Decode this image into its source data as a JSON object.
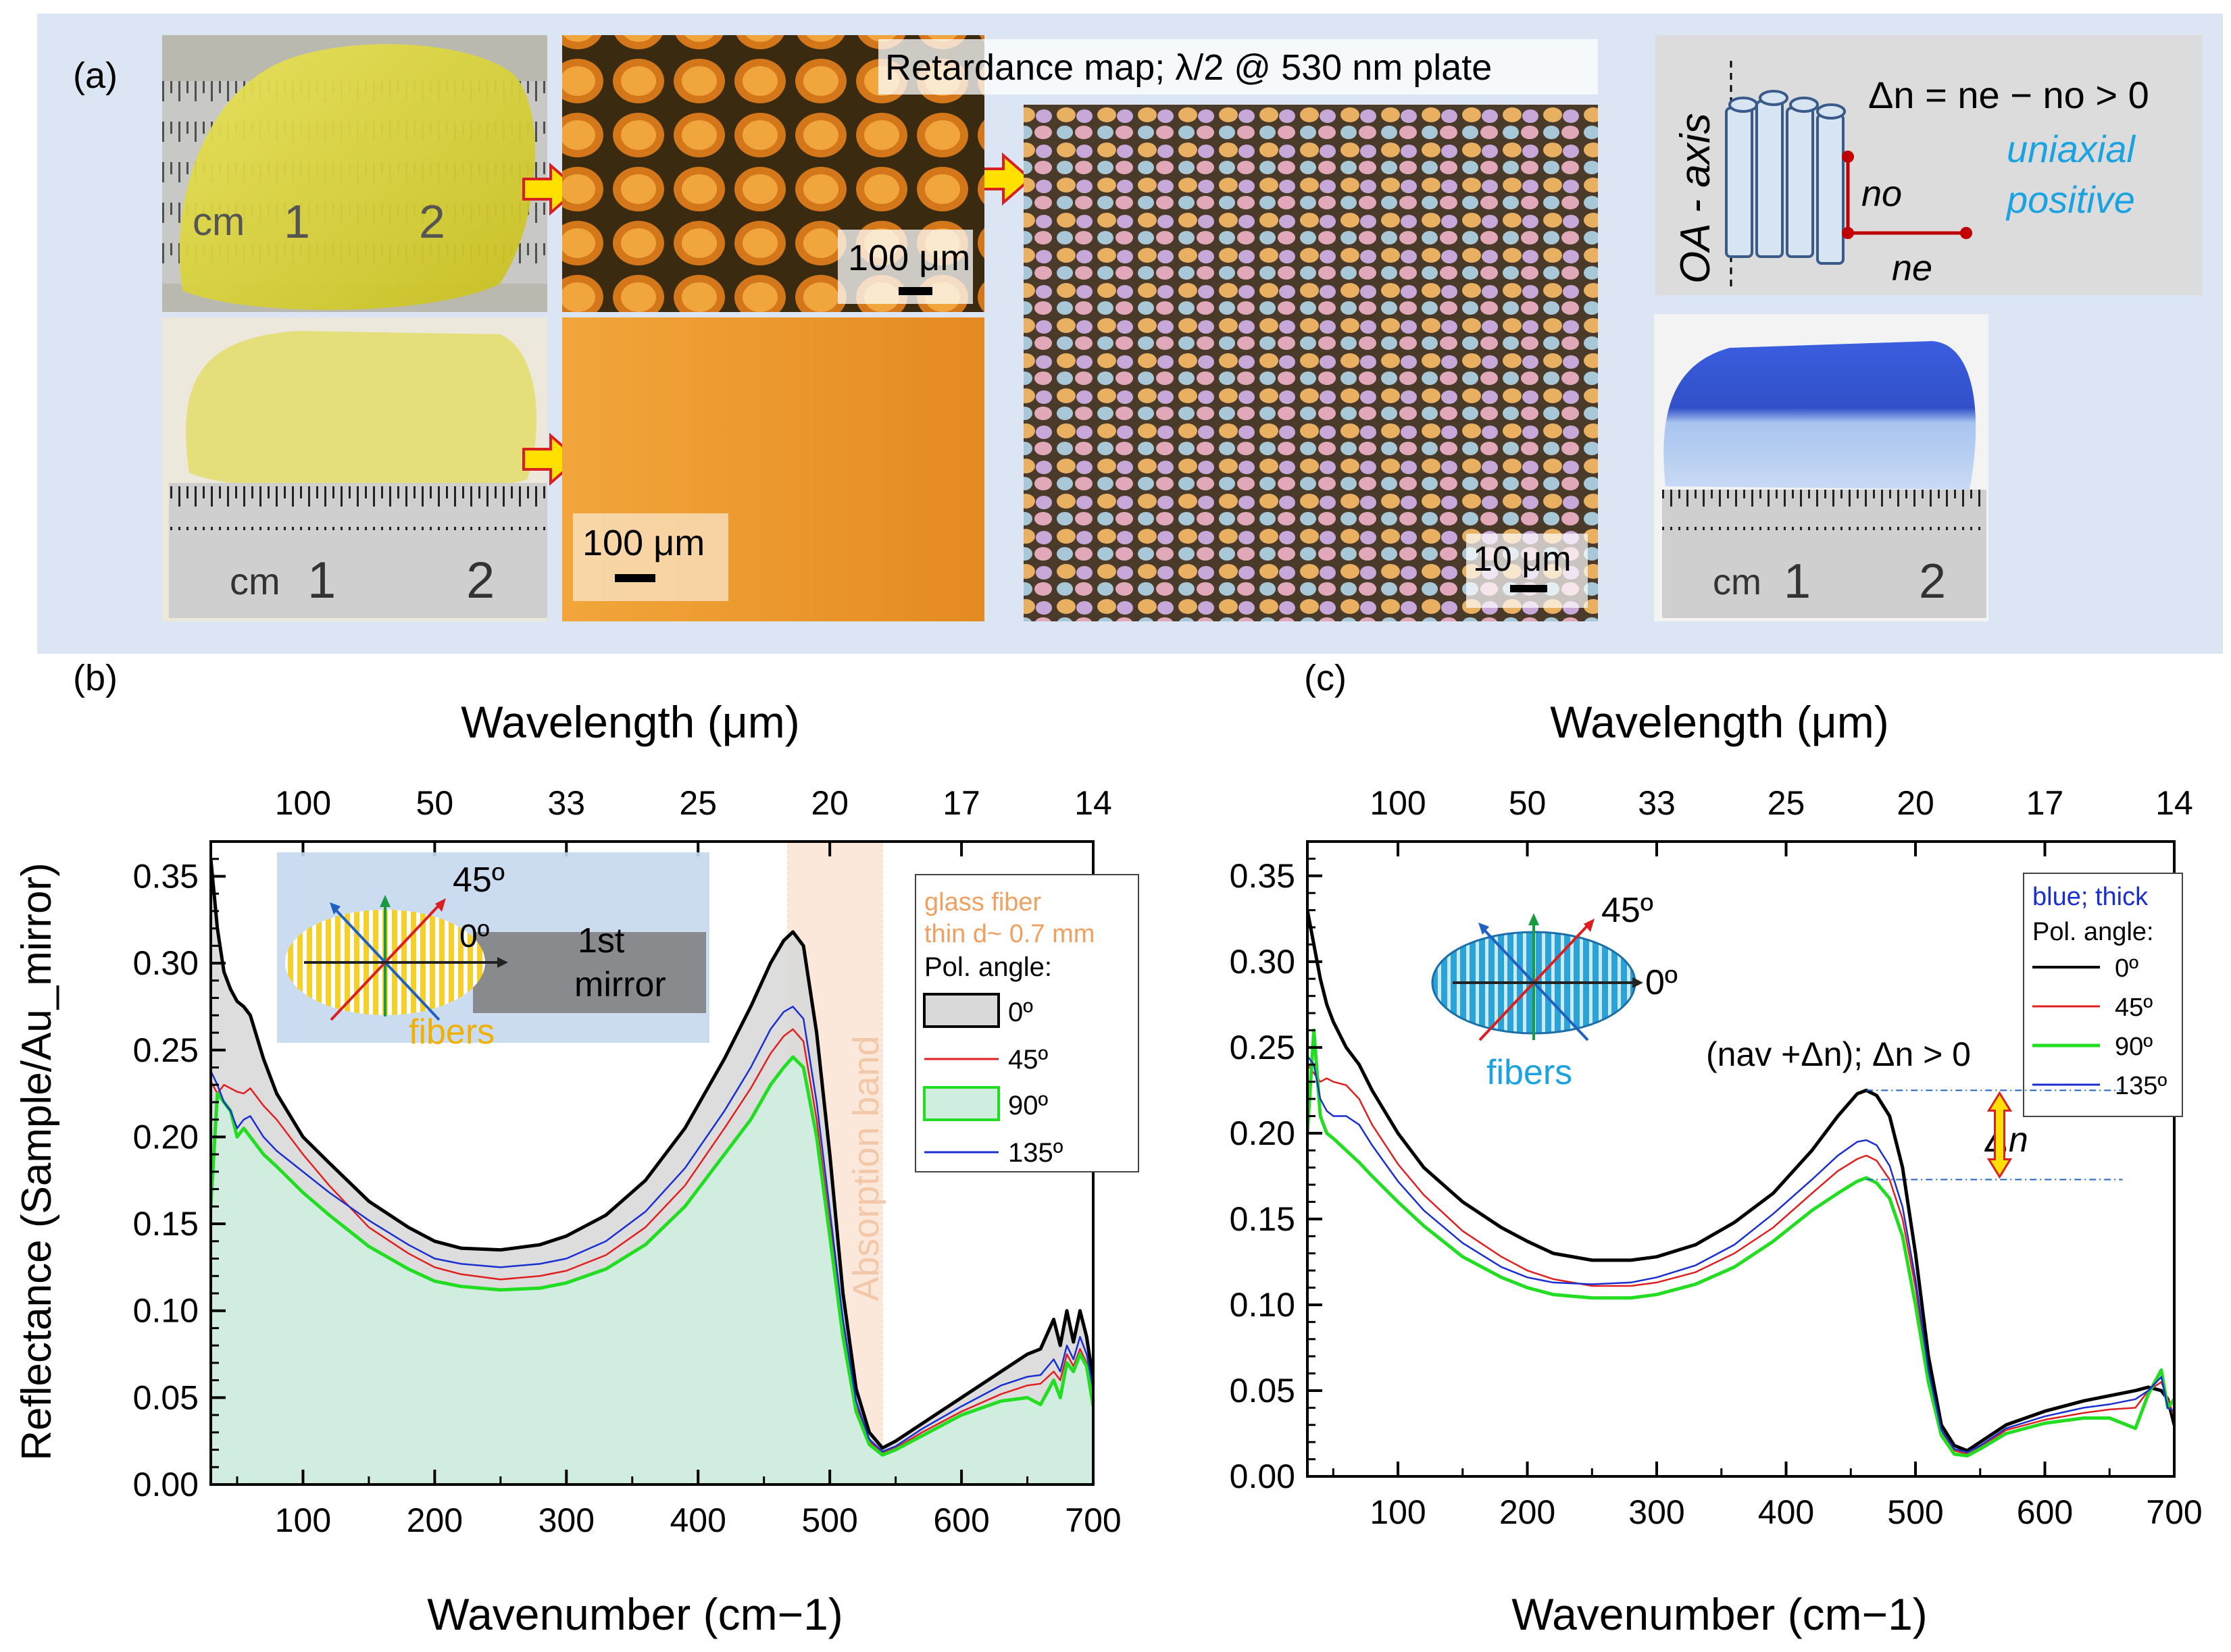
{
  "panel_labels": {
    "a": "(a)",
    "b": "(b)",
    "c": "(c)"
  },
  "panel_a": {
    "retardance_label": "Retardance map; λ/2 @ 530 nm plate",
    "scale_bars": [
      "100 μm",
      "100 μm",
      "10 μm"
    ],
    "ruler_labels": {
      "unit": "cm",
      "one": "1",
      "two": "2"
    },
    "oa_axis": "OA - axis",
    "delta_n_formula": "Δn = ne − no > 0",
    "birefringence_type": [
      "uniaxial",
      "positive"
    ],
    "n_o": "no",
    "n_e": "ne",
    "colors": {
      "frame_bg": "#dbe5f3",
      "yellow_glass": "#d9d22a",
      "blue_glass": "#3150c8",
      "accent_cyan": "#1aa3e0"
    }
  },
  "chart_data": [
    {
      "id": "b",
      "type": "line",
      "xlabel": "Wavenumber (cm−1)",
      "top_xlabel": "Wavelength (μm)",
      "ylabel": "Reflectance (Sample/Au_mirror)",
      "xlim": [
        30,
        700
      ],
      "ylim": [
        0.0,
        0.37
      ],
      "xticks": [
        100,
        200,
        300,
        400,
        500,
        600,
        700
      ],
      "yticks": [
        "0.00",
        "0.05",
        "0.10",
        "0.15",
        "0.20",
        "0.25",
        "0.30",
        "0.35"
      ],
      "top_ticks": [
        {
          "label": "100",
          "wn": 100
        },
        {
          "label": "50",
          "wn": 200
        },
        {
          "label": "33",
          "wn": 300
        },
        {
          "label": "25",
          "wn": 400
        },
        {
          "label": "20",
          "wn": 500
        },
        {
          "label": "17",
          "wn": 600
        },
        {
          "label": "14",
          "wn": 700
        }
      ],
      "band": {
        "label": "Absorption band",
        "from": 468,
        "to": 540
      },
      "legend": {
        "title": [
          "glass fiber",
          "thin d~ 0.7 mm"
        ],
        "pol_title": "Pol. angle:"
      },
      "inset": {
        "angle45": "45º",
        "angle0": "0º",
        "fibers": "fibers",
        "mirror": [
          "1st",
          "mirror"
        ]
      },
      "series": [
        {
          "name": "0º",
          "color": "#000000",
          "width": 5,
          "fill": "#d9d9d9",
          "x": [
            30,
            35,
            40,
            45,
            50,
            55,
            60,
            70,
            80,
            100,
            120,
            150,
            180,
            200,
            220,
            250,
            280,
            300,
            330,
            360,
            390,
            420,
            440,
            455,
            465,
            472,
            480,
            490,
            500,
            510,
            520,
            530,
            540,
            550,
            570,
            600,
            630,
            650,
            660,
            670,
            675,
            680,
            685,
            690,
            695,
            700
          ],
          "y": [
            0.36,
            0.32,
            0.295,
            0.285,
            0.278,
            0.275,
            0.27,
            0.245,
            0.225,
            0.2,
            0.185,
            0.163,
            0.148,
            0.14,
            0.136,
            0.135,
            0.138,
            0.143,
            0.155,
            0.175,
            0.205,
            0.245,
            0.275,
            0.3,
            0.313,
            0.318,
            0.31,
            0.26,
            0.19,
            0.11,
            0.055,
            0.03,
            0.021,
            0.025,
            0.035,
            0.05,
            0.065,
            0.075,
            0.078,
            0.095,
            0.08,
            0.1,
            0.082,
            0.1,
            0.085,
            0.06
          ]
        },
        {
          "name": "45º",
          "color": "#e02020",
          "width": 2.5,
          "x": [
            30,
            35,
            40,
            45,
            50,
            55,
            60,
            70,
            80,
            100,
            120,
            150,
            180,
            200,
            220,
            250,
            280,
            300,
            330,
            360,
            390,
            420,
            440,
            455,
            465,
            472,
            480,
            490,
            500,
            510,
            520,
            530,
            540,
            550,
            570,
            600,
            630,
            650,
            660,
            670,
            675,
            680,
            685,
            690,
            695,
            700
          ],
          "y": [
            0.232,
            0.225,
            0.23,
            0.228,
            0.226,
            0.225,
            0.228,
            0.218,
            0.21,
            0.19,
            0.172,
            0.148,
            0.133,
            0.125,
            0.121,
            0.118,
            0.12,
            0.123,
            0.132,
            0.148,
            0.172,
            0.205,
            0.228,
            0.248,
            0.258,
            0.262,
            0.255,
            0.21,
            0.15,
            0.09,
            0.045,
            0.025,
            0.018,
            0.021,
            0.03,
            0.042,
            0.052,
            0.057,
            0.058,
            0.065,
            0.06,
            0.075,
            0.068,
            0.078,
            0.07,
            0.05
          ]
        },
        {
          "name": "90º",
          "color": "#22dd22",
          "width": 5,
          "fill": "#cfeee0",
          "x": [
            30,
            35,
            40,
            45,
            50,
            55,
            60,
            70,
            80,
            100,
            120,
            150,
            180,
            200,
            220,
            250,
            280,
            300,
            330,
            360,
            390,
            420,
            440,
            455,
            465,
            472,
            480,
            490,
            500,
            510,
            520,
            530,
            540,
            550,
            570,
            600,
            630,
            650,
            660,
            670,
            675,
            680,
            685,
            690,
            695,
            700
          ],
          "y": [
            0.16,
            0.225,
            0.22,
            0.215,
            0.2,
            0.205,
            0.2,
            0.19,
            0.183,
            0.168,
            0.155,
            0.137,
            0.124,
            0.117,
            0.114,
            0.112,
            0.113,
            0.116,
            0.124,
            0.138,
            0.16,
            0.19,
            0.21,
            0.23,
            0.24,
            0.246,
            0.24,
            0.2,
            0.143,
            0.085,
            0.042,
            0.023,
            0.017,
            0.02,
            0.028,
            0.04,
            0.048,
            0.05,
            0.046,
            0.06,
            0.05,
            0.07,
            0.065,
            0.075,
            0.068,
            0.045
          ]
        },
        {
          "name": "135º",
          "color": "#1a2fd0",
          "width": 2.5,
          "x": [
            30,
            35,
            40,
            45,
            50,
            55,
            60,
            70,
            80,
            100,
            120,
            150,
            180,
            200,
            220,
            250,
            280,
            300,
            330,
            360,
            390,
            420,
            440,
            455,
            465,
            472,
            480,
            490,
            500,
            510,
            520,
            530,
            540,
            550,
            570,
            600,
            630,
            650,
            660,
            670,
            675,
            680,
            685,
            690,
            695,
            700
          ],
          "y": [
            0.238,
            0.23,
            0.22,
            0.215,
            0.205,
            0.21,
            0.212,
            0.2,
            0.192,
            0.18,
            0.168,
            0.152,
            0.138,
            0.13,
            0.127,
            0.125,
            0.127,
            0.13,
            0.14,
            0.157,
            0.182,
            0.215,
            0.24,
            0.262,
            0.272,
            0.275,
            0.268,
            0.22,
            0.158,
            0.095,
            0.048,
            0.026,
            0.019,
            0.022,
            0.032,
            0.045,
            0.057,
            0.062,
            0.063,
            0.072,
            0.065,
            0.08,
            0.072,
            0.085,
            0.075,
            0.055
          ]
        }
      ]
    },
    {
      "id": "c",
      "type": "line",
      "xlabel": "Wavenumber (cm−1)",
      "top_xlabel": "Wavelength (μm)",
      "ylabel": "",
      "xlim": [
        30,
        700
      ],
      "ylim": [
        0.0,
        0.37
      ],
      "xticks": [
        100,
        200,
        300,
        400,
        500,
        600,
        700
      ],
      "yticks": [
        "0.00",
        "0.05",
        "0.10",
        "0.15",
        "0.20",
        "0.25",
        "0.30",
        "0.35"
      ],
      "top_ticks": [
        {
          "label": "100",
          "wn": 100
        },
        {
          "label": "50",
          "wn": 200
        },
        {
          "label": "33",
          "wn": 300
        },
        {
          "label": "25",
          "wn": 400
        },
        {
          "label": "20",
          "wn": 500
        },
        {
          "label": "17",
          "wn": 600
        },
        {
          "label": "14",
          "wn": 700
        }
      ],
      "legend": {
        "title": [
          "blue; thick"
        ],
        "pol_title": "Pol. angle:"
      },
      "inset": {
        "angle45": "45º",
        "angle0": "0º",
        "fibers": "fibers"
      },
      "annotation": {
        "text": "(nav +Δn); Δn > 0",
        "delta": "Δn",
        "upper": 0.225,
        "lower": 0.173
      },
      "series": [
        {
          "name": "0º",
          "color": "#000000",
          "width": 5,
          "x": [
            30,
            35,
            40,
            45,
            50,
            60,
            70,
            80,
            100,
            120,
            150,
            180,
            200,
            220,
            250,
            280,
            300,
            330,
            360,
            390,
            420,
            440,
            455,
            462,
            470,
            480,
            490,
            500,
            510,
            520,
            530,
            540,
            550,
            570,
            600,
            630,
            650,
            670,
            680,
            690,
            695,
            700
          ],
          "y": [
            0.33,
            0.31,
            0.29,
            0.275,
            0.265,
            0.25,
            0.24,
            0.225,
            0.2,
            0.18,
            0.16,
            0.145,
            0.137,
            0.13,
            0.126,
            0.126,
            0.128,
            0.135,
            0.148,
            0.165,
            0.19,
            0.21,
            0.223,
            0.225,
            0.222,
            0.21,
            0.18,
            0.13,
            0.07,
            0.03,
            0.018,
            0.015,
            0.02,
            0.03,
            0.038,
            0.044,
            0.047,
            0.05,
            0.052,
            0.05,
            0.045,
            0.03
          ]
        },
        {
          "name": "45º",
          "color": "#e02020",
          "width": 2.5,
          "x": [
            30,
            35,
            40,
            45,
            50,
            60,
            70,
            80,
            100,
            120,
            150,
            180,
            200,
            220,
            250,
            280,
            300,
            330,
            360,
            390,
            420,
            440,
            455,
            462,
            470,
            480,
            490,
            500,
            510,
            520,
            530,
            540,
            550,
            570,
            600,
            630,
            650,
            670,
            680,
            690,
            695,
            700
          ],
          "y": [
            0.24,
            0.235,
            0.23,
            0.232,
            0.23,
            0.228,
            0.22,
            0.205,
            0.182,
            0.164,
            0.143,
            0.128,
            0.12,
            0.115,
            0.111,
            0.111,
            0.113,
            0.119,
            0.13,
            0.145,
            0.165,
            0.178,
            0.185,
            0.187,
            0.184,
            0.173,
            0.15,
            0.11,
            0.06,
            0.026,
            0.015,
            0.013,
            0.017,
            0.027,
            0.033,
            0.037,
            0.039,
            0.04,
            0.05,
            0.055,
            0.045,
            0.035
          ]
        },
        {
          "name": "90º",
          "color": "#22dd22",
          "width": 5,
          "x": [
            30,
            35,
            40,
            45,
            50,
            60,
            70,
            80,
            100,
            120,
            150,
            180,
            200,
            220,
            250,
            280,
            300,
            330,
            360,
            390,
            420,
            440,
            455,
            462,
            470,
            480,
            490,
            500,
            510,
            520,
            530,
            540,
            550,
            570,
            600,
            630,
            650,
            670,
            680,
            690,
            695,
            700
          ],
          "y": [
            0.2,
            0.26,
            0.21,
            0.2,
            0.197,
            0.19,
            0.183,
            0.175,
            0.16,
            0.146,
            0.128,
            0.116,
            0.11,
            0.106,
            0.104,
            0.104,
            0.106,
            0.112,
            0.122,
            0.137,
            0.155,
            0.165,
            0.172,
            0.174,
            0.171,
            0.162,
            0.14,
            0.1,
            0.055,
            0.024,
            0.013,
            0.012,
            0.016,
            0.025,
            0.031,
            0.034,
            0.034,
            0.028,
            0.048,
            0.062,
            0.04,
            0.045
          ]
        },
        {
          "name": "135º",
          "color": "#1a2fd0",
          "width": 2.5,
          "x": [
            30,
            35,
            40,
            45,
            50,
            60,
            70,
            80,
            100,
            120,
            150,
            180,
            200,
            220,
            250,
            280,
            300,
            330,
            360,
            390,
            420,
            440,
            455,
            462,
            470,
            480,
            490,
            500,
            510,
            520,
            530,
            540,
            550,
            570,
            600,
            630,
            650,
            670,
            680,
            690,
            695,
            700
          ],
          "y": [
            0.245,
            0.24,
            0.22,
            0.213,
            0.21,
            0.21,
            0.205,
            0.193,
            0.172,
            0.155,
            0.136,
            0.122,
            0.116,
            0.113,
            0.112,
            0.113,
            0.116,
            0.123,
            0.135,
            0.153,
            0.173,
            0.187,
            0.195,
            0.196,
            0.193,
            0.181,
            0.157,
            0.115,
            0.062,
            0.027,
            0.016,
            0.014,
            0.018,
            0.028,
            0.035,
            0.04,
            0.042,
            0.045,
            0.05,
            0.058,
            0.04,
            0.038
          ]
        }
      ]
    }
  ]
}
